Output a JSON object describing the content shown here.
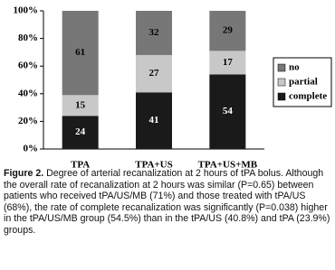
{
  "chart_data": {
    "type": "stacked_bar",
    "categories": [
      "TPA",
      "TPA+US",
      "TPA+US+MB"
    ],
    "series": [
      {
        "name": "complete",
        "color": "#1a1a1a",
        "label_color": "#ffffff",
        "values": [
          24,
          41,
          54
        ]
      },
      {
        "name": "partial",
        "color": "#c8c8c8",
        "label_color": "#000000",
        "values": [
          15,
          27,
          17
        ]
      },
      {
        "name": "no",
        "color": "#777777",
        "label_color": "#000000",
        "values": [
          61,
          32,
          29
        ]
      }
    ],
    "ylim": [
      0,
      100
    ],
    "yticks": [
      {
        "value": 0,
        "label": "0%"
      },
      {
        "value": 20,
        "label": "20%"
      },
      {
        "value": 40,
        "label": "40%"
      },
      {
        "value": 60,
        "label": "60%"
      },
      {
        "value": 80,
        "label": "80%"
      },
      {
        "value": 100,
        "label": "100%"
      }
    ],
    "legend": "right",
    "caption_label": "Figure 2.",
    "caption": "Degree of arterial recanalization at 2 hours of tPA bolus. Although the overall rate of recanalization at 2 hours was similar (P=0.65) between patients who received tPA/US/MB (71%) and those treated with tPA/US (68%), the rate of complete recanalization was significantly (P=0.038) higher in the tPA/US/MB group (54.5%) than in the tPA/US (40.8%) and tPA (23.9%) groups."
  }
}
